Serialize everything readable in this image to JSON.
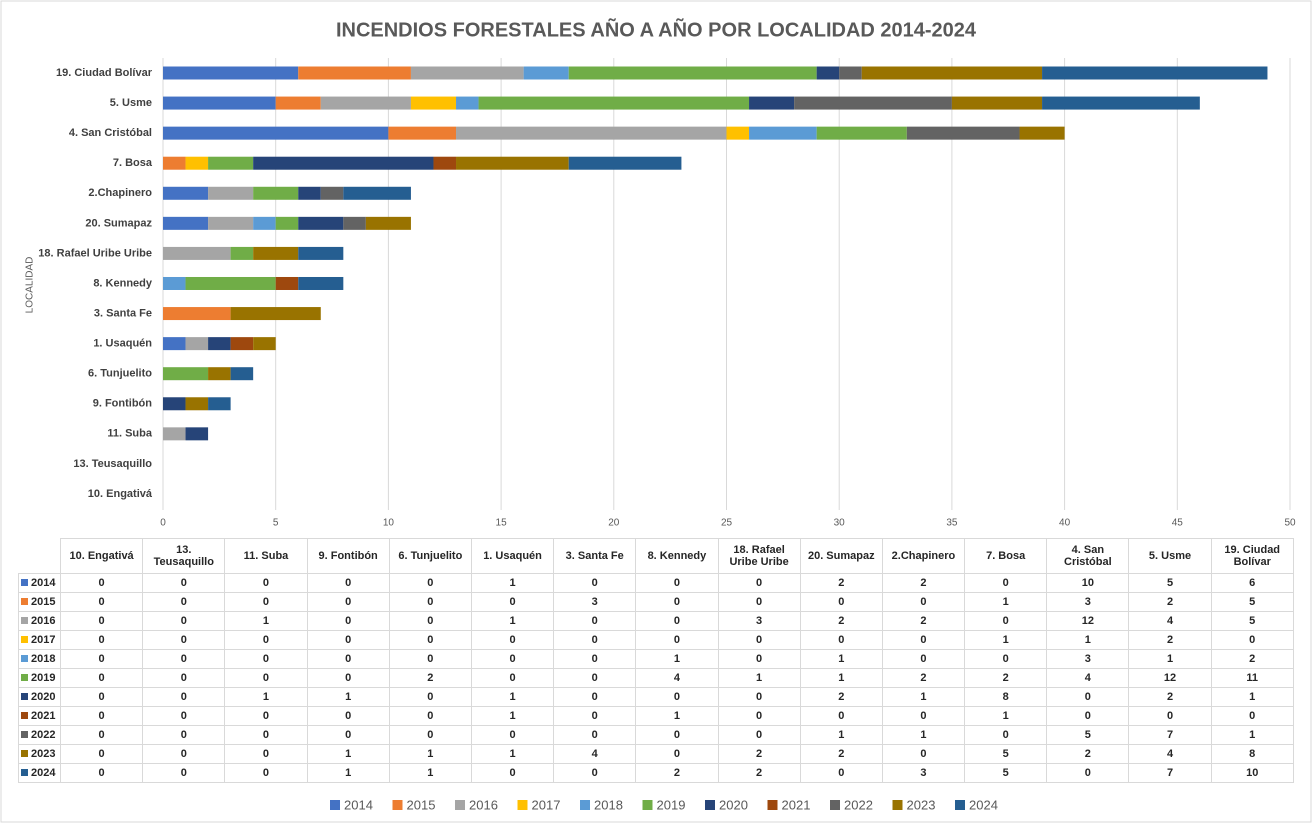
{
  "chart_data": {
    "type": "stacked_barh",
    "title": "INCENDIOS FORESTALES AÑO A AÑO POR LOCALIDAD 2014-2024",
    "y_label": "LOCALIDAD",
    "categories": [
      "10. Engativá",
      "13. Teusaquillo",
      "11. Suba",
      "9. Fontibón",
      "6. Tunjuelito",
      "1. Usaquén",
      "3. Santa Fe",
      "8. Kennedy",
      "18. Rafael Uribe Uribe",
      "20. Sumapaz",
      "2.Chapinero",
      "7. Bosa",
      "4. San Cristóbal",
      "5. Usme",
      "19. Ciudad Bolívar"
    ],
    "series": [
      {
        "name": "2014",
        "color": "#4472c4",
        "values": [
          0,
          0,
          0,
          0,
          0,
          1,
          0,
          0,
          0,
          2,
          2,
          0,
          10,
          5,
          6
        ]
      },
      {
        "name": "2015",
        "color": "#ed7d31",
        "values": [
          0,
          0,
          0,
          0,
          0,
          0,
          3,
          0,
          0,
          0,
          0,
          1,
          3,
          2,
          5
        ]
      },
      {
        "name": "2016",
        "color": "#a5a5a5",
        "values": [
          0,
          0,
          1,
          0,
          0,
          1,
          0,
          0,
          3,
          2,
          2,
          0,
          12,
          4,
          5
        ]
      },
      {
        "name": "2017",
        "color": "#ffc000",
        "values": [
          0,
          0,
          0,
          0,
          0,
          0,
          0,
          0,
          0,
          0,
          0,
          1,
          1,
          2,
          0
        ]
      },
      {
        "name": "2018",
        "color": "#5b9bd5",
        "values": [
          0,
          0,
          0,
          0,
          0,
          0,
          0,
          1,
          0,
          1,
          0,
          0,
          3,
          1,
          2
        ]
      },
      {
        "name": "2019",
        "color": "#70ad47",
        "values": [
          0,
          0,
          0,
          0,
          2,
          0,
          0,
          4,
          1,
          1,
          2,
          2,
          4,
          12,
          11
        ]
      },
      {
        "name": "2020",
        "color": "#264478",
        "values": [
          0,
          0,
          1,
          1,
          0,
          1,
          0,
          0,
          0,
          2,
          1,
          8,
          0,
          2,
          1
        ]
      },
      {
        "name": "2021",
        "color": "#9e480e",
        "values": [
          0,
          0,
          0,
          0,
          0,
          1,
          0,
          1,
          0,
          0,
          0,
          1,
          0,
          0,
          0
        ]
      },
      {
        "name": "2022",
        "color": "#636363",
        "values": [
          0,
          0,
          0,
          0,
          0,
          0,
          0,
          0,
          0,
          1,
          1,
          0,
          5,
          7,
          1
        ]
      },
      {
        "name": "2023",
        "color": "#997300",
        "values": [
          0,
          0,
          0,
          1,
          1,
          1,
          4,
          0,
          2,
          2,
          0,
          5,
          2,
          4,
          8
        ]
      },
      {
        "name": "2024",
        "color": "#255e91",
        "values": [
          0,
          0,
          0,
          1,
          1,
          0,
          0,
          2,
          2,
          0,
          3,
          5,
          0,
          7,
          10
        ]
      }
    ],
    "xlim": [
      0,
      50
    ],
    "xticks": [
      0,
      5,
      10,
      15,
      20,
      25,
      30,
      35,
      40,
      45,
      50
    ],
    "grid": true,
    "legend": "bottom"
  }
}
